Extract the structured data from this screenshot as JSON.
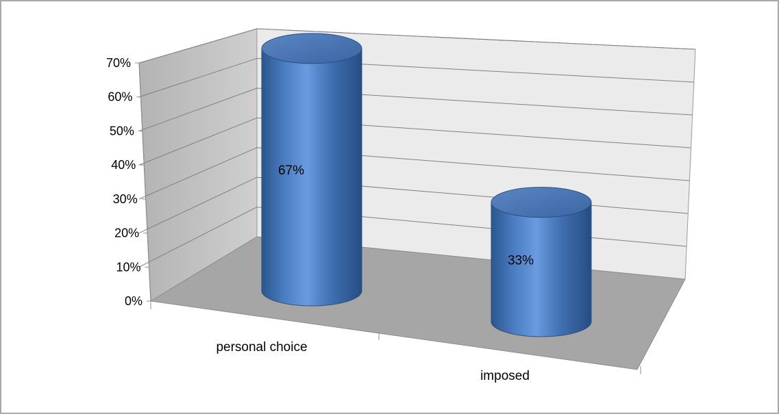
{
  "chart_data": {
    "type": "bar",
    "style": "3d-cylinder",
    "categories": [
      "personal choice",
      "imposed"
    ],
    "values": [
      0.67,
      0.33
    ],
    "data_labels": [
      "67%",
      "33%"
    ],
    "ylim": [
      0,
      0.7
    ],
    "ytick_values": [
      0,
      0.1,
      0.2,
      0.3,
      0.4,
      0.5,
      0.6,
      0.7
    ],
    "ytick_labels": [
      "0%",
      "10%",
      "20%",
      "30%",
      "40%",
      "50%",
      "60%",
      "70%"
    ],
    "grid": true,
    "legend": "none",
    "colors": {
      "bar": "#4f81bd",
      "back_wall": "#ebebeb",
      "side_wall": "#bfbfbf",
      "floor": "#a6a6a6",
      "gridline": "#7f7f7f"
    }
  }
}
